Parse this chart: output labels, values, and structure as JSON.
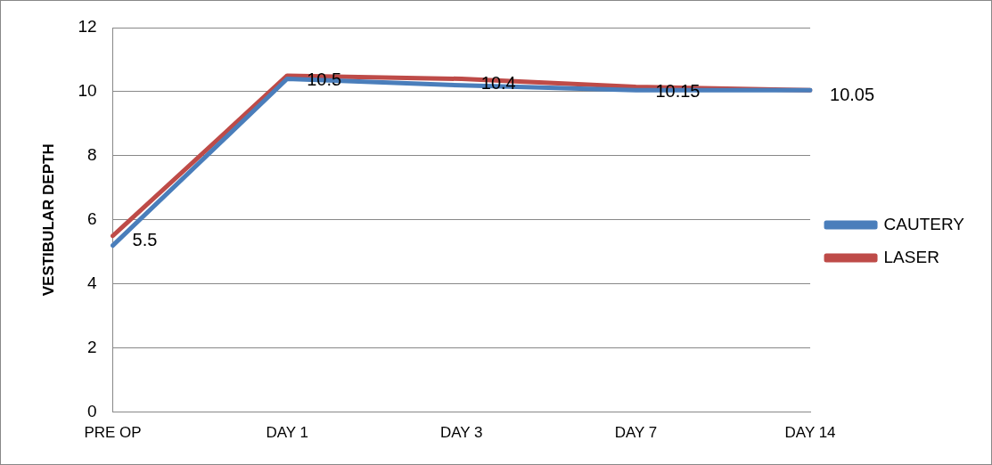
{
  "chart_data": {
    "type": "line",
    "ylabel": "VESTIBULAR DEPTH",
    "categories": [
      "PRE OP",
      "DAY 1",
      "DAY 3",
      "DAY 7",
      "DAY 14"
    ],
    "series": [
      {
        "name": "CAUTERY",
        "color": "#4a7ebb",
        "values": [
          5.2,
          10.4,
          10.2,
          10.05,
          10.05
        ]
      },
      {
        "name": "LASER",
        "color": "#be4b48",
        "values": [
          5.5,
          10.5,
          10.4,
          10.15,
          10.05
        ],
        "value_labels": [
          "5.5",
          "10.5",
          "10.4",
          "10.15",
          "10.05"
        ]
      }
    ],
    "ylim": [
      0,
      12
    ],
    "yticks": [
      0,
      2,
      4,
      6,
      8,
      10,
      12
    ],
    "grid": "y",
    "legend": "right",
    "marker": "none",
    "line_style": "solid"
  }
}
